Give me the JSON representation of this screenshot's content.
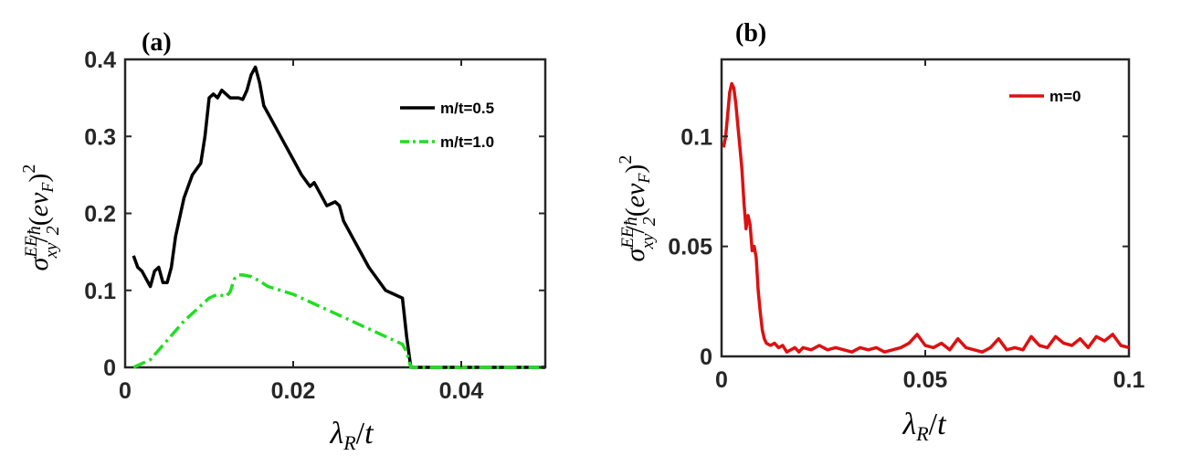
{
  "chart_data": [
    {
      "panel_label": "(a)",
      "type": "line",
      "xlabel": "λR/t",
      "ylabel": "σxyEE/ħ2(evF)2",
      "xlim": [
        0,
        0.05
      ],
      "ylim": [
        0,
        0.4
      ],
      "xticks": [
        "0",
        "0.02",
        "0.04"
      ],
      "yticks": [
        "0",
        "0.1",
        "0.2",
        "0.3",
        "0.4"
      ],
      "legend_position": "top-right",
      "series": [
        {
          "name": "m/t=0.5",
          "color": "#000000",
          "style": "solid",
          "x": [
            0.001,
            0.0015,
            0.002,
            0.0025,
            0.003,
            0.0035,
            0.004,
            0.0045,
            0.005,
            0.0055,
            0.006,
            0.007,
            0.008,
            0.009,
            0.0095,
            0.01,
            0.0105,
            0.011,
            0.0115,
            0.012,
            0.0125,
            0.013,
            0.0135,
            0.014,
            0.0145,
            0.015,
            0.0155,
            0.016,
            0.0165,
            0.017,
            0.018,
            0.019,
            0.02,
            0.021,
            0.022,
            0.0225,
            0.023,
            0.024,
            0.025,
            0.0255,
            0.026,
            0.027,
            0.028,
            0.029,
            0.03,
            0.031,
            0.032,
            0.033,
            0.0335,
            0.034,
            0.035,
            0.04,
            0.045,
            0.05
          ],
          "values": [
            0.145,
            0.13,
            0.125,
            0.115,
            0.105,
            0.125,
            0.13,
            0.11,
            0.11,
            0.13,
            0.17,
            0.22,
            0.25,
            0.265,
            0.3,
            0.35,
            0.355,
            0.35,
            0.36,
            0.355,
            0.35,
            0.35,
            0.35,
            0.348,
            0.36,
            0.38,
            0.39,
            0.37,
            0.34,
            0.33,
            0.31,
            0.29,
            0.27,
            0.25,
            0.235,
            0.24,
            0.23,
            0.21,
            0.215,
            0.21,
            0.19,
            0.17,
            0.15,
            0.13,
            0.115,
            0.1,
            0.095,
            0.09,
            0.04,
            0.0,
            0.0,
            0.0,
            0.0,
            0.0
          ]
        },
        {
          "name": "m/t=1.0",
          "color": "#22dd22",
          "style": "dashdot",
          "x": [
            0.001,
            0.003,
            0.005,
            0.007,
            0.009,
            0.01,
            0.011,
            0.012,
            0.0125,
            0.013,
            0.0135,
            0.014,
            0.015,
            0.016,
            0.017,
            0.02,
            0.023,
            0.026,
            0.029,
            0.031,
            0.033,
            0.0335,
            0.034,
            0.035,
            0.04,
            0.045,
            0.05
          ],
          "values": [
            0.0,
            0.01,
            0.035,
            0.06,
            0.08,
            0.09,
            0.095,
            0.092,
            0.098,
            0.115,
            0.12,
            0.12,
            0.118,
            0.112,
            0.105,
            0.095,
            0.08,
            0.065,
            0.05,
            0.04,
            0.03,
            0.02,
            0.0,
            0.0,
            0.0,
            0.0,
            0.0
          ]
        }
      ]
    },
    {
      "panel_label": "(b)",
      "type": "line",
      "xlabel": "λR/t",
      "ylabel": "σxyEE/ħ2(evF)2",
      "xlim": [
        0,
        0.1
      ],
      "ylim": [
        0,
        0.135
      ],
      "xticks": [
        "0",
        "0.05",
        "0.1"
      ],
      "yticks": [
        "0",
        "0.05",
        "0.1"
      ],
      "legend_position": "top-right",
      "series": [
        {
          "name": "m=0",
          "color": "#dd1111",
          "style": "solid",
          "x": [
            0.0005,
            0.001,
            0.0015,
            0.002,
            0.0025,
            0.003,
            0.0035,
            0.004,
            0.0045,
            0.005,
            0.0055,
            0.006,
            0.0065,
            0.007,
            0.0075,
            0.008,
            0.0085,
            0.009,
            0.0095,
            0.01,
            0.0105,
            0.011,
            0.012,
            0.013,
            0.014,
            0.015,
            0.016,
            0.017,
            0.018,
            0.019,
            0.02,
            0.022,
            0.024,
            0.026,
            0.028,
            0.03,
            0.032,
            0.034,
            0.036,
            0.038,
            0.04,
            0.042,
            0.044,
            0.046,
            0.048,
            0.05,
            0.052,
            0.054,
            0.056,
            0.058,
            0.06,
            0.062,
            0.064,
            0.066,
            0.068,
            0.07,
            0.072,
            0.074,
            0.076,
            0.078,
            0.08,
            0.082,
            0.084,
            0.086,
            0.088,
            0.09,
            0.092,
            0.094,
            0.096,
            0.098,
            0.1
          ],
          "values": [
            0.095,
            0.1,
            0.11,
            0.12,
            0.124,
            0.122,
            0.115,
            0.105,
            0.095,
            0.085,
            0.07,
            0.058,
            0.064,
            0.06,
            0.048,
            0.05,
            0.045,
            0.03,
            0.02,
            0.012,
            0.008,
            0.006,
            0.005,
            0.006,
            0.004,
            0.005,
            0.002,
            0.003,
            0.004,
            0.002,
            0.004,
            0.003,
            0.005,
            0.003,
            0.004,
            0.003,
            0.002,
            0.004,
            0.003,
            0.004,
            0.002,
            0.003,
            0.004,
            0.006,
            0.01,
            0.005,
            0.004,
            0.006,
            0.003,
            0.008,
            0.004,
            0.003,
            0.002,
            0.004,
            0.008,
            0.003,
            0.004,
            0.003,
            0.009,
            0.005,
            0.004,
            0.009,
            0.006,
            0.005,
            0.008,
            0.004,
            0.009,
            0.007,
            0.01,
            0.005,
            0.004
          ]
        }
      ]
    }
  ]
}
